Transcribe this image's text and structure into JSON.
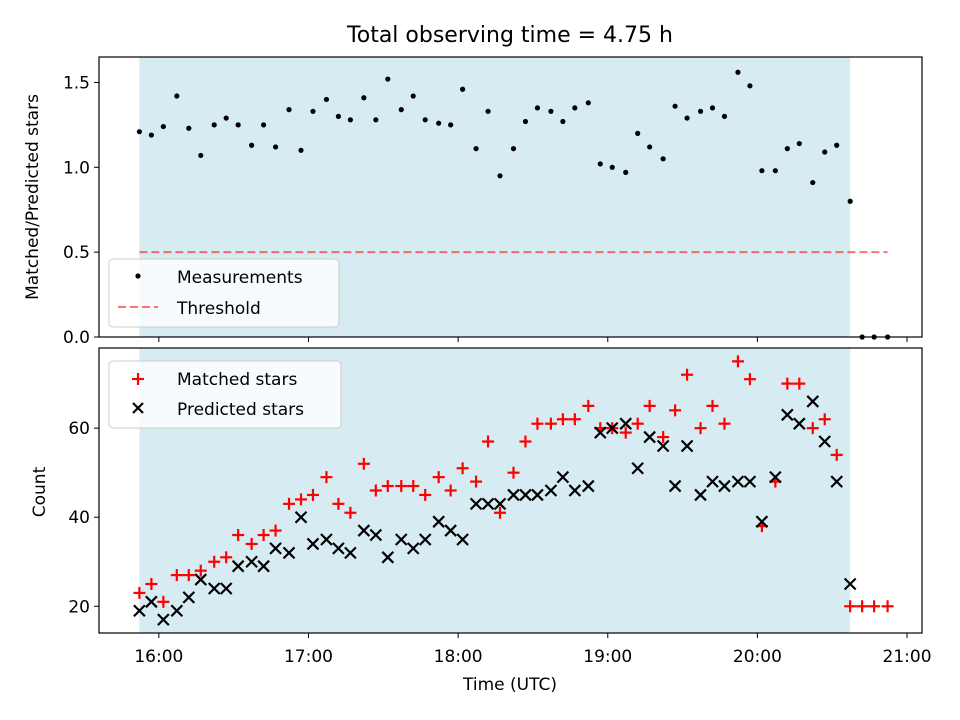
{
  "title": "Total observing time = 4.75 h",
  "colors": {
    "shade": "#add8e6",
    "measurement": "#000000",
    "threshold": "#ff0000",
    "matched": "#ff0000",
    "predicted": "#000000"
  },
  "chart_data": [
    {
      "type": "scatter",
      "panel": "top",
      "title": "Total observing time = 4.75 h",
      "xlabel": "",
      "ylabel": "Matched/Predicted stars",
      "xlim": [
        15.6,
        21.1
      ],
      "ylim": [
        0,
        1.65
      ],
      "yticks": [
        0.0,
        0.5,
        1.0,
        1.5
      ],
      "ytick_labels": [
        "0.0",
        "0.5",
        "1.0",
        "1.5"
      ],
      "xticks": [
        16,
        17,
        18,
        19,
        20,
        21
      ],
      "xtick_labels": [],
      "observing_window": [
        15.87,
        20.62
      ],
      "legend_position": "lower-left",
      "threshold": {
        "name": "Threshold",
        "x": [
          15.87,
          20.87
        ],
        "value": 0.5,
        "style": "dashed"
      },
      "series": [
        {
          "name": "Measurements",
          "marker": "dot",
          "x": [
            15.87,
            15.95,
            16.03,
            16.12,
            16.2,
            16.28,
            16.37,
            16.45,
            16.53,
            16.62,
            16.7,
            16.78,
            16.87,
            16.95,
            17.03,
            17.12,
            17.2,
            17.28,
            17.37,
            17.45,
            17.53,
            17.62,
            17.7,
            17.78,
            17.87,
            17.95,
            18.03,
            18.12,
            18.2,
            18.28,
            18.37,
            18.45,
            18.53,
            18.62,
            18.7,
            18.78,
            18.87,
            18.95,
            19.03,
            19.12,
            19.2,
            19.28,
            19.37,
            19.45,
            19.53,
            19.62,
            19.7,
            19.78,
            19.87,
            19.95,
            20.03,
            20.12,
            20.2,
            20.28,
            20.37,
            20.45,
            20.53,
            20.62,
            20.7,
            20.78,
            20.87
          ],
          "values": [
            1.21,
            1.19,
            1.24,
            1.42,
            1.23,
            1.07,
            1.25,
            1.29,
            1.25,
            1.13,
            1.25,
            1.12,
            1.34,
            1.1,
            1.33,
            1.4,
            1.3,
            1.28,
            1.41,
            1.28,
            1.52,
            1.34,
            1.42,
            1.28,
            1.26,
            1.25,
            1.46,
            1.11,
            1.33,
            0.95,
            1.11,
            1.27,
            1.35,
            1.33,
            1.27,
            1.35,
            1.38,
            1.02,
            1.0,
            0.97,
            1.2,
            1.12,
            1.05,
            1.36,
            1.29,
            1.33,
            1.35,
            1.3,
            1.56,
            1.48,
            0.98,
            0.98,
            1.11,
            1.14,
            0.91,
            1.09,
            1.13,
            0.8,
            0.0,
            0.0,
            0.0
          ]
        }
      ]
    },
    {
      "type": "scatter",
      "panel": "bottom",
      "xlabel": "Time (UTC)",
      "ylabel": "Count",
      "xlim": [
        15.6,
        21.1
      ],
      "ylim": [
        14,
        78
      ],
      "yticks": [
        20,
        40,
        60
      ],
      "ytick_labels": [
        "20",
        "40",
        "60"
      ],
      "xticks": [
        16,
        17,
        18,
        19,
        20,
        21
      ],
      "xtick_labels": [
        "16:00",
        "17:00",
        "18:00",
        "19:00",
        "20:00",
        "21:00"
      ],
      "observing_window": [
        15.87,
        20.62
      ],
      "legend_position": "upper-left",
      "series": [
        {
          "name": "Matched stars",
          "marker": "plus",
          "x": [
            15.87,
            15.95,
            16.03,
            16.12,
            16.2,
            16.28,
            16.37,
            16.45,
            16.53,
            16.62,
            16.7,
            16.78,
            16.87,
            16.95,
            17.03,
            17.12,
            17.2,
            17.28,
            17.37,
            17.45,
            17.53,
            17.62,
            17.7,
            17.78,
            17.87,
            17.95,
            18.03,
            18.12,
            18.2,
            18.28,
            18.37,
            18.45,
            18.53,
            18.62,
            18.7,
            18.78,
            18.87,
            18.95,
            19.03,
            19.12,
            19.2,
            19.28,
            19.37,
            19.45,
            19.53,
            19.62,
            19.7,
            19.78,
            19.87,
            19.95,
            20.03,
            20.12,
            20.2,
            20.28,
            20.37,
            20.45,
            20.53,
            20.62,
            20.7,
            20.78,
            20.87
          ],
          "values": [
            23,
            25,
            21,
            27,
            27,
            28,
            30,
            31,
            36,
            34,
            36,
            37,
            43,
            44,
            45,
            49,
            43,
            41,
            52,
            46,
            47,
            47,
            47,
            45,
            49,
            46,
            51,
            48,
            57,
            41,
            50,
            57,
            61,
            61,
            62,
            62,
            65,
            60,
            60,
            59,
            61,
            65,
            58,
            64,
            72,
            60,
            65,
            61,
            75,
            71,
            38,
            48,
            70,
            70,
            60,
            62,
            54,
            20,
            20,
            20,
            20
          ]
        },
        {
          "name": "Predicted stars",
          "marker": "x",
          "x": [
            15.87,
            15.95,
            16.03,
            16.12,
            16.2,
            16.28,
            16.37,
            16.45,
            16.53,
            16.62,
            16.7,
            16.78,
            16.87,
            16.95,
            17.03,
            17.12,
            17.2,
            17.28,
            17.37,
            17.45,
            17.53,
            17.62,
            17.7,
            17.78,
            17.87,
            17.95,
            18.03,
            18.12,
            18.2,
            18.28,
            18.37,
            18.45,
            18.53,
            18.62,
            18.7,
            18.78,
            18.87,
            18.95,
            19.03,
            19.12,
            19.2,
            19.28,
            19.37,
            19.45,
            19.53,
            19.62,
            19.7,
            19.78,
            19.87,
            19.95,
            20.03,
            20.12,
            20.2,
            20.28,
            20.37,
            20.45,
            20.53,
            20.62
          ],
          "values": [
            19,
            21,
            17,
            19,
            22,
            26,
            24,
            24,
            29,
            30,
            29,
            33,
            32,
            40,
            34,
            35,
            33,
            32,
            37,
            36,
            31,
            35,
            33,
            35,
            39,
            37,
            35,
            43,
            43,
            43,
            45,
            45,
            45,
            46,
            49,
            46,
            47,
            59,
            60,
            61,
            51,
            58,
            56,
            47,
            56,
            45,
            48,
            47,
            48,
            48,
            39,
            49,
            63,
            61,
            66,
            57,
            48,
            25
          ]
        }
      ]
    }
  ]
}
